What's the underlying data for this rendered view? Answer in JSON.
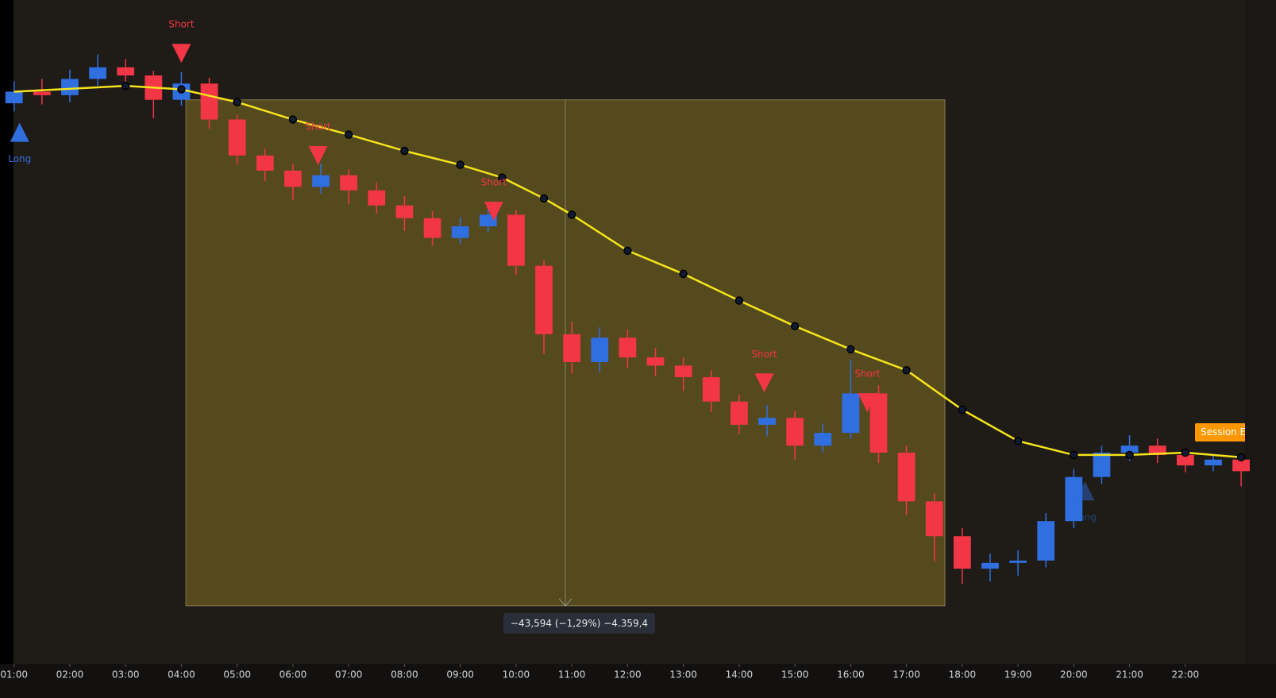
{
  "chart_data": {
    "type": "candlestick",
    "xlim": [
      0.99,
      23.07
    ],
    "ylim": [
      3330.8,
      3388.0
    ],
    "xticks": [
      {
        "value": 1,
        "label": "01:00"
      },
      {
        "value": 2,
        "label": "02:00"
      },
      {
        "value": 3,
        "label": "03:00"
      },
      {
        "value": 4,
        "label": "04:00"
      },
      {
        "value": 5,
        "label": "05:00"
      },
      {
        "value": 6,
        "label": "06:00"
      },
      {
        "value": 7,
        "label": "07:00"
      },
      {
        "value": 8,
        "label": "08:00"
      },
      {
        "value": 9,
        "label": "09:00"
      },
      {
        "value": 10,
        "label": "10:00"
      },
      {
        "value": 11,
        "label": "11:00"
      },
      {
        "value": 12,
        "label": "12:00"
      },
      {
        "value": 13,
        "label": "13:00"
      },
      {
        "value": 14,
        "label": "14:00"
      },
      {
        "value": 15,
        "label": "15:00"
      },
      {
        "value": 16,
        "label": "16:00"
      },
      {
        "value": 17,
        "label": "17:00"
      },
      {
        "value": 18,
        "label": "18:00"
      },
      {
        "value": 19,
        "label": "19:00"
      },
      {
        "value": 20,
        "label": "20:00"
      },
      {
        "value": 21,
        "label": "21:00"
      },
      {
        "value": 22,
        "label": "22:00"
      }
    ],
    "up_color": "#2f6fe0",
    "down_color": "#f23645",
    "candles": {
      "x": [
        1,
        1.5,
        2,
        2.5,
        3,
        3.5,
        4,
        4.5,
        5,
        5.5,
        6,
        6.5,
        7,
        7.5,
        8,
        8.5,
        9,
        9.5,
        10,
        10.5,
        11,
        11.5,
        12,
        12.5,
        13,
        13.5,
        14,
        14.5,
        15,
        15.5,
        16,
        16.5,
        17,
        17.5,
        18,
        18.5,
        19,
        19.5,
        20,
        20.5,
        21,
        21.5,
        22,
        22.5,
        23
      ],
      "open": [
        3379.1,
        3380.1,
        3379.8,
        3381.2,
        3382.2,
        3381.5,
        3379.4,
        3380.8,
        3377.7,
        3374.6,
        3373.3,
        3371.9,
        3372.9,
        3371.6,
        3370.3,
        3369.2,
        3367.5,
        3368.5,
        3369.5,
        3365.1,
        3359.2,
        3356.8,
        3358.9,
        3357.2,
        3356.5,
        3355.5,
        3353.4,
        3351.4,
        3352.0,
        3349.6,
        3350.7,
        3354.1,
        3349.0,
        3344.8,
        3341.8,
        3339.0,
        3339.5,
        3339.7,
        3343.1,
        3346.9,
        3349.0,
        3349.6,
        3348.8,
        3347.9,
        3348.4
      ],
      "high": [
        3381.0,
        3381.2,
        3382.0,
        3383.3,
        3382.9,
        3381.9,
        3381.8,
        3381.3,
        3378.1,
        3375.2,
        3373.9,
        3373.9,
        3373.4,
        3372.3,
        3371.1,
        3369.8,
        3369.3,
        3370.4,
        3369.9,
        3365.6,
        3360.3,
        3359.8,
        3359.6,
        3358.0,
        3357.2,
        3356.1,
        3354.0,
        3353.1,
        3352.6,
        3351.5,
        3357.0,
        3354.8,
        3349.6,
        3345.5,
        3342.5,
        3340.3,
        3340.6,
        3343.8,
        3347.6,
        3349.6,
        3350.5,
        3350.2,
        3349.3,
        3348.9,
        3348.8
      ],
      "low": [
        3378.4,
        3379.0,
        3379.2,
        3380.6,
        3380.8,
        3377.8,
        3378.9,
        3376.9,
        3373.8,
        3372.4,
        3370.8,
        3371.3,
        3370.4,
        3369.6,
        3368.1,
        3366.8,
        3367.0,
        3368.0,
        3364.3,
        3357.5,
        3355.8,
        3355.9,
        3356.3,
        3355.6,
        3354.3,
        3352.5,
        3350.6,
        3350.4,
        3348.4,
        3349.0,
        3350.2,
        3348.1,
        3343.6,
        3339.6,
        3337.7,
        3337.9,
        3338.4,
        3339.1,
        3342.5,
        3346.3,
        3348.3,
        3348.1,
        3347.3,
        3347.4,
        3346.1
      ],
      "close": [
        3380.1,
        3379.8,
        3381.2,
        3382.2,
        3381.5,
        3379.4,
        3380.8,
        3377.7,
        3374.6,
        3373.3,
        3371.9,
        3372.9,
        3371.6,
        3370.3,
        3369.2,
        3367.5,
        3368.5,
        3369.5,
        3365.1,
        3359.2,
        3356.8,
        3358.9,
        3357.2,
        3356.5,
        3355.5,
        3353.4,
        3351.4,
        3352.0,
        3349.6,
        3350.7,
        3354.1,
        3349.0,
        3344.8,
        3341.8,
        3339.0,
        3339.5,
        3339.7,
        3343.1,
        3346.9,
        3349.0,
        3349.6,
        3348.8,
        3347.9,
        3348.4,
        3347.4
      ]
    },
    "ma": {
      "color": "#f5e41b",
      "x": [
        1,
        3,
        4,
        5,
        6,
        7,
        8,
        9,
        9.75,
        10.5,
        11,
        12,
        13,
        14,
        15,
        16,
        17,
        18,
        19,
        20,
        21,
        22,
        23
      ],
      "values": [
        3380.1,
        3380.6,
        3380.3,
        3379.2,
        3377.7,
        3376.4,
        3375.0,
        3373.8,
        3372.7,
        3370.9,
        3369.5,
        3366.4,
        3364.4,
        3362.1,
        3359.9,
        3357.9,
        3356.1,
        3352.7,
        3350.0,
        3348.8,
        3348.8,
        3349.0,
        3348.6
      ]
    },
    "signals": [
      {
        "label": "Long",
        "x": 1.1,
        "price": 3376.6
      },
      {
        "label": "Short",
        "x": 4.0,
        "price": 3383.4
      },
      {
        "label": "Short",
        "x": 6.45,
        "price": 3374.6
      },
      {
        "label": "Short",
        "x": 9.6,
        "price": 3369.8
      },
      {
        "label": "Short",
        "x": 14.45,
        "price": 3355.0
      },
      {
        "label": "Short",
        "x": 16.3,
        "price": 3353.3
      },
      {
        "label": "Long",
        "x": 20.2,
        "price": 3345.7
      }
    ],
    "measure": {
      "label": "−43,594 (−1,29%) −4.359,4",
      "x0": 4.08,
      "x1": 17.69,
      "start": 3379.4,
      "end": 3335.8
    },
    "session_label": "Session End"
  }
}
